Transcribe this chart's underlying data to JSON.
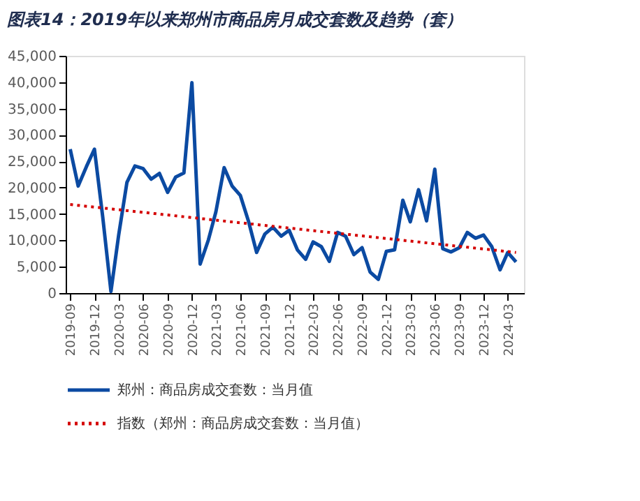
{
  "chart_data": {
    "type": "line",
    "title": "图表14：2019年以来郑州市商品房月成交套数及趋势（套）",
    "x": [
      "2019-09",
      "2019-10",
      "2019-11",
      "2019-12",
      "2020-01",
      "2020-02",
      "2020-03",
      "2020-04",
      "2020-05",
      "2020-06",
      "2020-07",
      "2020-08",
      "2020-09",
      "2020-10",
      "2020-11",
      "2020-12",
      "2021-01",
      "2021-02",
      "2021-03",
      "2021-04",
      "2021-05",
      "2021-06",
      "2021-07",
      "2021-08",
      "2021-09",
      "2021-10",
      "2021-11",
      "2021-12",
      "2022-01",
      "2022-02",
      "2022-03",
      "2022-04",
      "2022-05",
      "2022-06",
      "2022-07",
      "2022-08",
      "2022-09",
      "2022-10",
      "2022-11",
      "2022-12",
      "2023-01",
      "2023-02",
      "2023-03",
      "2023-04",
      "2023-05",
      "2023-06",
      "2023-07",
      "2023-08",
      "2023-09",
      "2023-10",
      "2023-11",
      "2023-12",
      "2024-01",
      "2024-02",
      "2024-03",
      "2024-04"
    ],
    "series": [
      {
        "name": "郑州：商品房成交套数：当月值",
        "color": "#0b4aa2",
        "line_style": "solid",
        "values": [
          27300,
          20300,
          24000,
          27300,
          14500,
          300,
          11000,
          21000,
          24100,
          23600,
          21600,
          22700,
          19100,
          22000,
          22800,
          39900,
          5500,
          10100,
          15400,
          23800,
          20300,
          18500,
          13700,
          7700,
          11200,
          12500,
          10800,
          11900,
          8200,
          6400,
          9700,
          8800,
          6000,
          11500,
          10800,
          7300,
          8600,
          4000,
          2600,
          7900,
          8200,
          17600,
          13500,
          19600,
          13700,
          23500,
          8400,
          7800,
          8600,
          11500,
          10400,
          11000,
          8800,
          4400,
          7700,
          5900
        ]
      },
      {
        "name": "指数（郑州：商品房成交套数：当月值）",
        "color": "#d40000",
        "line_style": "dotted",
        "x": [
          "2019-09",
          "2024-04"
        ],
        "values": [
          16800,
          7700
        ]
      }
    ],
    "xlim": [
      "2019-08-15",
      "2024-05-01"
    ],
    "xticks": [
      {
        "value": "2019-09",
        "label": "2019-09"
      },
      {
        "value": "2019-12",
        "label": "2019-12"
      },
      {
        "value": "2020-03",
        "label": "2020-03"
      },
      {
        "value": "2020-06",
        "label": "2020-06"
      },
      {
        "value": "2020-09",
        "label": "2020-09"
      },
      {
        "value": "2020-12",
        "label": "2020-12"
      },
      {
        "value": "2021-03",
        "label": "2021-03"
      },
      {
        "value": "2021-06",
        "label": "2021-06"
      },
      {
        "value": "2021-09",
        "label": "2021-09"
      },
      {
        "value": "2021-12",
        "label": "2021-12"
      },
      {
        "value": "2022-03",
        "label": "2022-03"
      },
      {
        "value": "2022-06",
        "label": "2022-06"
      },
      {
        "value": "2022-09",
        "label": "2022-09"
      },
      {
        "value": "2022-12",
        "label": "2022-12"
      },
      {
        "value": "2023-03",
        "label": "2023-03"
      },
      {
        "value": "2023-06",
        "label": "2023-06"
      },
      {
        "value": "2023-09",
        "label": "2023-09"
      },
      {
        "value": "2023-12",
        "label": "2023-12"
      },
      {
        "value": "2024-03",
        "label": "2024-03"
      }
    ],
    "ylim": [
      0,
      45000
    ],
    "yticks": [
      {
        "value": 0,
        "label": "0"
      },
      {
        "value": 5000,
        "label": "5,000"
      },
      {
        "value": 10000,
        "label": "10,000"
      },
      {
        "value": 15000,
        "label": "15,000"
      },
      {
        "value": 20000,
        "label": "20,000"
      },
      {
        "value": 25000,
        "label": "25,000"
      },
      {
        "value": 30000,
        "label": "30,000"
      },
      {
        "value": 35000,
        "label": "35,000"
      },
      {
        "value": 40000,
        "label": "40,000"
      },
      {
        "value": 45000,
        "label": "45,000"
      }
    ],
    "grid": false,
    "legend": "bottom",
    "marker": "none"
  }
}
